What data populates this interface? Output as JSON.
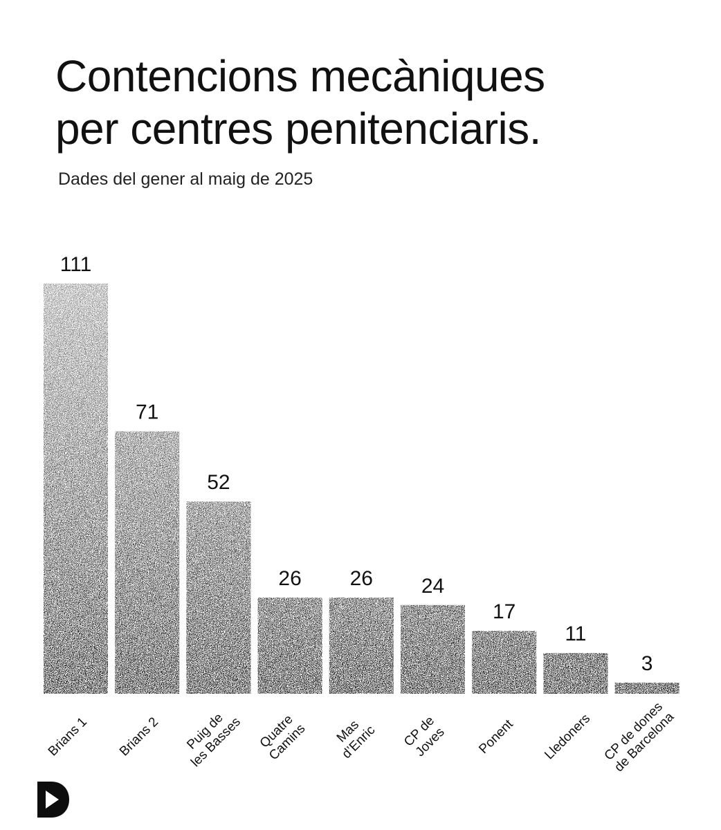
{
  "header": {
    "title_line1": "Contencions mecàniques",
    "title_line2": "per centres penitenciaris.",
    "subtitle": "Dades del gener al maig de 2025"
  },
  "chart_data": {
    "type": "bar",
    "title": "Contencions mecàniques per centres penitenciaris.",
    "subtitle": "Dades del gener al maig de 2025",
    "xlabel": "",
    "ylabel": "",
    "grid": false,
    "ylim": [
      0,
      111
    ],
    "categories": [
      [
        "Brians 1"
      ],
      [
        "Brians 2"
      ],
      [
        "Puig de",
        "les Basses"
      ],
      [
        "Quatre",
        "Camins"
      ],
      [
        "Mas",
        "d’Enric"
      ],
      [
        "CP de",
        "Joves"
      ],
      [
        "Ponent"
      ],
      [
        "Lledoners"
      ],
      [
        "CP de dones",
        "de Barcelona"
      ]
    ],
    "values": [
      111,
      71,
      52,
      26,
      26,
      24,
      17,
      11,
      3
    ]
  },
  "colors": {
    "background": "#ffffff",
    "text": "#111111",
    "bar_dark": "#1a1a1a",
    "bar_light": "#ffffff"
  },
  "logo": {
    "icon": "play-d-logo-icon"
  }
}
